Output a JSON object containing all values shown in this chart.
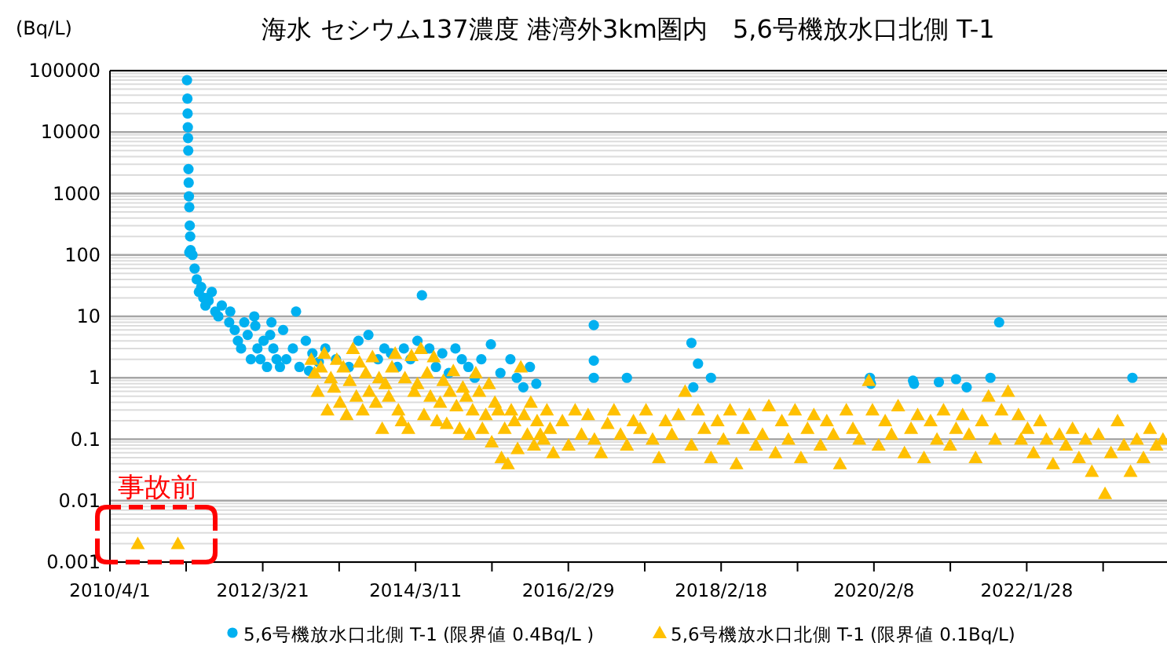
{
  "chart_data": {
    "type": "scatter",
    "title": "海水 セシウム137濃度 港湾外3km圏内　5,6号機放水口北側 T-1",
    "ylabel": "(Bq/L)",
    "log": "y",
    "grid": "y",
    "legend": "bottom",
    "xlim": [
      "2010-04-01",
      "2023-11-20"
    ],
    "xticks": [
      {
        "value": "2010-04-01",
        "label": "2010/4/1"
      },
      {
        "value": "2011-03-26",
        "label": null
      },
      {
        "value": "2012-03-21",
        "label": "2012/3/21"
      },
      {
        "value": "2013-03-16",
        "label": null
      },
      {
        "value": "2014-03-11",
        "label": "2014/3/11"
      },
      {
        "value": "2015-03-06",
        "label": null
      },
      {
        "value": "2016-02-29",
        "label": "2016/2/29"
      },
      {
        "value": "2017-02-23",
        "label": null
      },
      {
        "value": "2018-02-18",
        "label": "2018/2/18"
      },
      {
        "value": "2019-02-13",
        "label": null
      },
      {
        "value": "2020-02-08",
        "label": "2020/2/8"
      },
      {
        "value": "2021-02-02",
        "label": null
      },
      {
        "value": "2022-01-28",
        "label": "2022/1/28"
      },
      {
        "value": "2023-01-23",
        "label": null
      }
    ],
    "ylim": [
      0.001,
      100000
    ],
    "yticks": [
      0.001,
      0.01,
      0.1,
      1,
      10,
      100,
      1000,
      10000,
      100000
    ],
    "annotations": [
      "事故前"
    ],
    "series": [
      {
        "name": "5,6号機放水口北側 T-1 (限界値 0.4Bq/L )",
        "color": "#00b0f0",
        "marker": "circle",
        "x": [
          "2011-03-30",
          "2011-04-01",
          "2011-04-02",
          "2011-04-03",
          "2011-04-04",
          "2011-04-05",
          "2011-04-06",
          "2011-04-07",
          "2011-04-08",
          "2011-04-10",
          "2011-04-12",
          "2011-04-14",
          "2011-04-16",
          "2011-04-10",
          "2011-04-25",
          "2011-05-05",
          "2011-05-15",
          "2011-05-25",
          "2011-06-05",
          "2011-06-15",
          "2011-06-25",
          "2011-07-10",
          "2011-07-25",
          "2011-08-10",
          "2011-08-25",
          "2011-09-10",
          "2011-10-15",
          "2011-10-20",
          "2011-07-05",
          "2011-11-10",
          "2011-11-25",
          "2011-12-10",
          "2011-12-25",
          "2012-01-10",
          "2012-01-25",
          "2012-02-10",
          "2012-02-25",
          "2012-03-10",
          "2012-03-25",
          "2012-04-10",
          "2012-04-25",
          "2012-05-10",
          "2012-05-25",
          "2012-06-10",
          "2012-06-25",
          "2012-07-10",
          "2012-08-10",
          "2012-09-10",
          "2012-10-10",
          "2012-11-10",
          "2012-12-10",
          "2012-02-15",
          "2012-05-01",
          "2012-08-25",
          "2012-10-25",
          "2013-01-10",
          "2013-03-01",
          "2013-05-01",
          "2013-06-15",
          "2013-08-01",
          "2013-09-15",
          "2013-10-15",
          "2013-11-15",
          "2013-12-15",
          "2014-01-15",
          "2014-02-15",
          "2014-03-20",
          "2014-04-10",
          "2014-05-15",
          "2014-06-15",
          "2014-07-15",
          "2014-08-15",
          "2014-09-15",
          "2014-10-15",
          "2014-11-15",
          "2014-12-15",
          "2015-01-15",
          "2015-03-01",
          "2015-04-15",
          "2015-06-01",
          "2015-07-01",
          "2015-08-01",
          "2015-09-01",
          "2015-10-01",
          "2016-06-28",
          "2016-06-28",
          "2016-06-28",
          "2016-12-01",
          "2017-10-01",
          "2017-10-10",
          "2017-11-01",
          "2018-01-01",
          "2020-01-20",
          "2020-01-25",
          "2020-08-10",
          "2020-08-15",
          "2020-12-10",
          "2021-03-01",
          "2021-04-20",
          "2021-08-10",
          "2021-09-20",
          "2023-06-10"
        ],
        "values": [
          70000,
          35000,
          20000,
          12000,
          8000,
          5000,
          2500,
          1500,
          900,
          600,
          300,
          200,
          120,
          110,
          100,
          60,
          40,
          25,
          30,
          20,
          15,
          18,
          25,
          12,
          10,
          15,
          8,
          12,
          20,
          6,
          4,
          3,
          8,
          5,
          2,
          10,
          3,
          2,
          4,
          1.5,
          5,
          3,
          2,
          1.5,
          6,
          2,
          3,
          1.5,
          4,
          2.5,
          1.8,
          7,
          8,
          12,
          1.3,
          3,
          2,
          1.5,
          4,
          5,
          2,
          3,
          2.5,
          1.5,
          3,
          2,
          4,
          22,
          3,
          1.5,
          2.5,
          1.2,
          3,
          2,
          1.5,
          1,
          2,
          3.5,
          1.2,
          2,
          1,
          0.7,
          1.5,
          0.8,
          7.2,
          1.9,
          1.0,
          1.0,
          3.7,
          0.7,
          1.7,
          1.0,
          1.0,
          0.8,
          0.9,
          0.8,
          0.85,
          0.95,
          0.7,
          1.0,
          8,
          1.0
        ]
      },
      {
        "name": "5,6号機放水口北側 T-1 (限界値 0.1Bq/L)",
        "color": "#ffc000",
        "marker": "triangle",
        "x": [
          "2010-08-10",
          "2011-02-15",
          "2012-11-05",
          "2012-11-20",
          "2012-12-05",
          "2012-12-20",
          "2013-01-05",
          "2013-01-20",
          "2013-02-05",
          "2013-02-20",
          "2013-03-05",
          "2013-03-20",
          "2013-04-05",
          "2013-04-20",
          "2013-05-05",
          "2013-05-20",
          "2013-06-05",
          "2013-06-20",
          "2013-07-05",
          "2013-07-20",
          "2013-08-05",
          "2013-08-20",
          "2013-09-05",
          "2013-09-20",
          "2013-10-05",
          "2013-10-20",
          "2013-11-05",
          "2013-11-20",
          "2013-12-05",
          "2013-12-20",
          "2014-01-05",
          "2014-01-20",
          "2014-02-05",
          "2014-02-20",
          "2014-03-05",
          "2014-03-20",
          "2014-04-05",
          "2014-04-20",
          "2014-05-05",
          "2014-05-20",
          "2014-06-05",
          "2014-06-20",
          "2014-07-05",
          "2014-07-20",
          "2014-08-05",
          "2014-08-20",
          "2014-09-05",
          "2014-09-20",
          "2014-10-05",
          "2014-10-20",
          "2014-11-05",
          "2014-11-20",
          "2014-12-05",
          "2014-12-20",
          "2015-01-05",
          "2015-01-20",
          "2015-02-05",
          "2015-02-20",
          "2015-03-05",
          "2015-03-20",
          "2015-04-05",
          "2015-04-20",
          "2015-05-05",
          "2015-05-20",
          "2015-06-05",
          "2015-06-20",
          "2015-07-05",
          "2015-07-20",
          "2015-08-05",
          "2015-08-20",
          "2015-09-05",
          "2015-09-20",
          "2015-10-05",
          "2015-10-20",
          "2015-11-05",
          "2015-11-20",
          "2015-12-05",
          "2015-12-20",
          "2016-02-01",
          "2016-03-01",
          "2016-04-01",
          "2016-05-01",
          "2016-06-01",
          "2016-07-01",
          "2016-08-01",
          "2016-09-01",
          "2016-10-01",
          "2016-11-01",
          "2016-12-01",
          "2017-01-01",
          "2017-02-01",
          "2017-03-01",
          "2017-04-01",
          "2017-05-01",
          "2017-06-01",
          "2017-07-01",
          "2017-08-01",
          "2017-09-01",
          "2017-10-01",
          "2017-11-01",
          "2017-12-01",
          "2018-01-01",
          "2018-02-01",
          "2018-03-01",
          "2018-04-01",
          "2018-05-01",
          "2018-06-01",
          "2018-07-01",
          "2018-08-01",
          "2018-09-01",
          "2018-10-01",
          "2018-11-01",
          "2018-12-01",
          "2019-01-01",
          "2019-02-01",
          "2019-03-01",
          "2019-04-01",
          "2019-05-01",
          "2019-06-01",
          "2019-07-01",
          "2019-08-01",
          "2019-09-01",
          "2019-10-01",
          "2019-11-01",
          "2019-12-01",
          "2020-01-15",
          "2020-02-01",
          "2020-03-01",
          "2020-04-01",
          "2020-05-01",
          "2020-06-01",
          "2020-07-01",
          "2020-08-01",
          "2020-09-01",
          "2020-10-01",
          "2020-11-01",
          "2020-12-01",
          "2021-01-01",
          "2021-02-01",
          "2021-03-01",
          "2021-04-01",
          "2021-05-01",
          "2021-06-01",
          "2021-07-01",
          "2021-08-01",
          "2021-09-01",
          "2021-10-01",
          "2021-11-01",
          "2021-12-20",
          "2022-01-01",
          "2022-02-01",
          "2022-03-01",
          "2022-04-01",
          "2022-05-01",
          "2022-06-01",
          "2022-07-01",
          "2022-08-01",
          "2022-09-01",
          "2022-10-01",
          "2022-11-01",
          "2022-12-01",
          "2023-01-01",
          "2023-02-01",
          "2023-03-01",
          "2023-04-01",
          "2023-05-01",
          "2023-06-01",
          "2023-07-01",
          "2023-08-01",
          "2023-09-01",
          "2023-10-01",
          "2023-11-01"
        ],
        "values": [
          0.002,
          0.002,
          2,
          1.2,
          0.6,
          1.5,
          2.5,
          0.3,
          1.0,
          0.7,
          2.0,
          0.4,
          1.5,
          0.25,
          0.9,
          3,
          0.5,
          1.8,
          0.3,
          1.2,
          0.6,
          2.2,
          0.4,
          1.0,
          0.15,
          0.8,
          0.5,
          1.5,
          2.5,
          0.3,
          0.2,
          1.0,
          0.15,
          2.3,
          0.6,
          0.8,
          3.0,
          0.25,
          1.2,
          0.5,
          2.2,
          0.2,
          0.4,
          0.9,
          0.18,
          0.6,
          1.3,
          0.35,
          0.15,
          0.7,
          0.5,
          0.12,
          0.3,
          1.2,
          0.6,
          0.15,
          0.25,
          0.8,
          0.09,
          0.4,
          0.3,
          0.05,
          0.15,
          0.04,
          0.3,
          0.2,
          0.07,
          1.5,
          0.25,
          0.12,
          0.4,
          0.08,
          0.2,
          0.12,
          0.1,
          0.3,
          0.15,
          0.06,
          0.2,
          0.08,
          0.3,
          0.12,
          0.25,
          0.1,
          0.06,
          0.18,
          0.3,
          0.12,
          0.08,
          0.2,
          0.15,
          0.3,
          0.1,
          0.05,
          0.2,
          0.12,
          0.25,
          0.6,
          0.08,
          0.3,
          0.15,
          0.05,
          0.2,
          0.1,
          0.3,
          0.04,
          0.15,
          0.25,
          0.08,
          0.12,
          0.35,
          0.06,
          0.2,
          0.1,
          0.3,
          0.05,
          0.15,
          0.25,
          0.08,
          0.2,
          0.12,
          0.04,
          0.3,
          0.15,
          0.1,
          0.9,
          0.3,
          0.08,
          0.2,
          0.12,
          0.35,
          0.06,
          0.15,
          0.25,
          0.05,
          0.2,
          0.1,
          0.3,
          0.08,
          0.15,
          0.25,
          0.12,
          0.05,
          0.2,
          0.5,
          0.1,
          0.3,
          0.6,
          0.25,
          0.1,
          0.15,
          0.06,
          0.2,
          0.1,
          0.04,
          0.12,
          0.08,
          0.15,
          0.05,
          0.1,
          0.03,
          0.12,
          0.013,
          0.06,
          0.2,
          0.08,
          0.03,
          0.1,
          0.05,
          0.15,
          0.08,
          0.1
        ]
      }
    ]
  }
}
